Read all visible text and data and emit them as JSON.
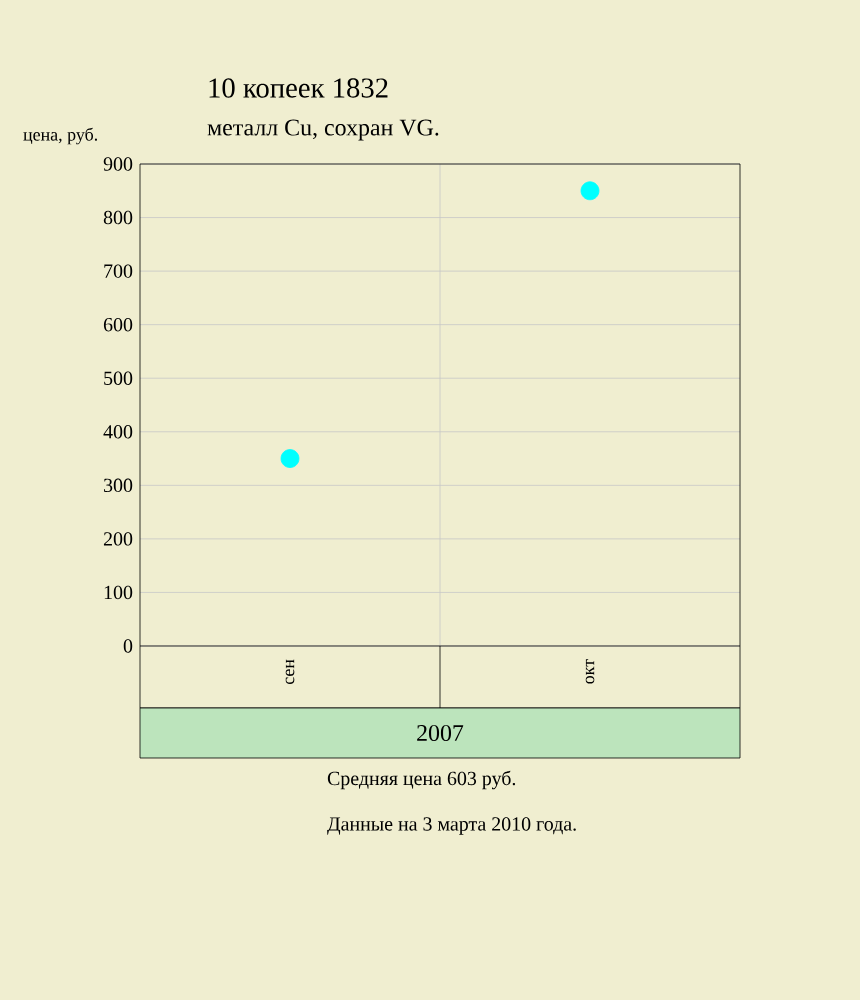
{
  "chart_data": {
    "type": "scatter",
    "title": "10 копеек 1832",
    "subtitle": "металл Cu, сохран VG.",
    "ylabel": "цена, руб.",
    "xlabel": "2007",
    "categories": [
      "сен",
      "окт"
    ],
    "series": [
      {
        "color": "#00ffff",
        "values": [
          350,
          850
        ]
      }
    ],
    "ylim": [
      0,
      900
    ],
    "yticks": [
      0,
      100,
      200,
      300,
      400,
      500,
      600,
      700,
      800,
      900
    ],
    "grid": true,
    "annotations": [
      "Средняя цена 603 руб.",
      "Данные на 3 марта 2010 года."
    ]
  }
}
